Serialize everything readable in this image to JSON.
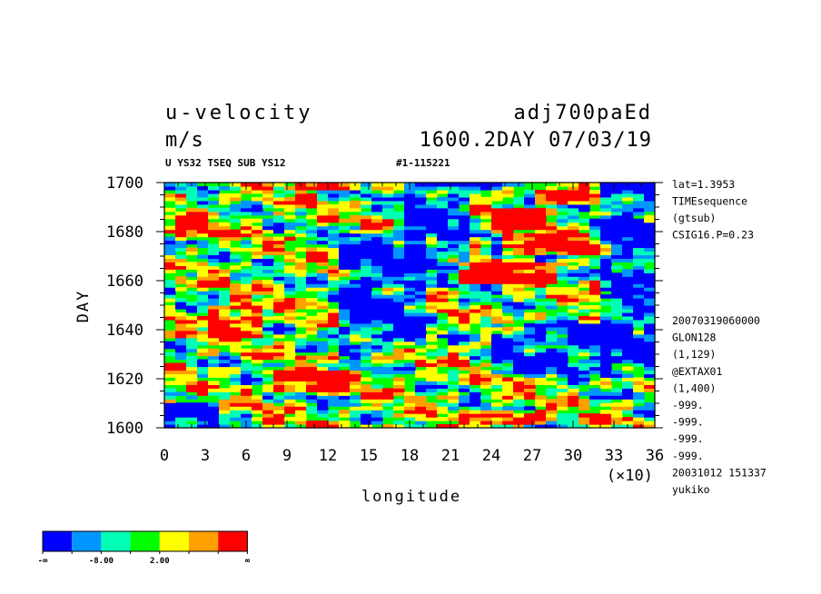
{
  "header": {
    "variable": "u-velocity",
    "experiment": "adj700paEd",
    "units": "m/s",
    "time_label": "1600.2DAY 07/03/19",
    "subtitle": "U YS32 TSEQ SUB YS12",
    "run_id": "#1-115221"
  },
  "side_info": {
    "top": [
      "lat=1.3953",
      "TIMEsequence",
      "(gtsub)",
      "CSIG16.P=0.23"
    ],
    "bottom": [
      "20070319060000",
      "GLON128",
      "(1,129)",
      "@EXTAX01",
      "(1,400)",
      "-999.",
      "-999.",
      "-999.",
      "-999.",
      "20031012 151337",
      "yukiko"
    ]
  },
  "chart_data": {
    "type": "heatmap",
    "xlabel": "longitude",
    "ylabel": "DAY",
    "x_multiplier": "(×10)",
    "xlim": [
      0,
      36
    ],
    "ylim": [
      1600,
      1700
    ],
    "x_ticks": [
      "0",
      "3",
      "6",
      "9",
      "12",
      "15",
      "18",
      "21",
      "24",
      "27",
      "30",
      "33",
      "36"
    ],
    "y_ticks": [
      "1600",
      "1620",
      "1640",
      "1660",
      "1680",
      "1700"
    ],
    "colors": [
      "#0000ff",
      "#0096ff",
      "#00ffb4",
      "#00ff00",
      "#ffff00",
      "#ffa000",
      "#ff0000"
    ],
    "colorbar_labels": [
      "-∞",
      "-8.00",
      "2.00",
      "∞"
    ],
    "red_regions": [
      {
        "x": [
          0.5,
          3.5
        ],
        "y": [
          1676,
          1685
        ]
      },
      {
        "x": [
          3,
          7.5
        ],
        "y": [
          1637,
          1650
        ]
      },
      {
        "x": [
          8,
          13.5
        ],
        "y": [
          1614,
          1623
        ]
      },
      {
        "x": [
          10,
          14
        ],
        "y": [
          1697,
          1700
        ]
      },
      {
        "x": [
          22,
          29
        ],
        "y": [
          1659,
          1667
        ]
      },
      {
        "x": [
          25,
          31
        ],
        "y": [
          1670,
          1679
        ]
      },
      {
        "x": [
          24,
          28.5
        ],
        "y": [
          1681,
          1689
        ]
      },
      {
        "x": [
          23,
          28
        ],
        "y": [
          1601,
          1607
        ]
      },
      {
        "x": [
          27,
          31
        ],
        "y": [
          1691,
          1697
        ]
      },
      {
        "x": [
          31,
          33
        ],
        "y": [
          1655,
          1660
        ]
      }
    ],
    "blue_regions": [
      {
        "x": [
          13,
          19
        ],
        "y": [
          1633,
          1680
        ]
      },
      {
        "x": [
          18,
          22
        ],
        "y": [
          1665,
          1700
        ]
      },
      {
        "x": [
          32,
          36
        ],
        "y": [
          1620,
          1700
        ]
      },
      {
        "x": [
          0,
          4
        ],
        "y": [
          1600,
          1610
        ]
      },
      {
        "x": [
          24,
          33
        ],
        "y": [
          1622,
          1642
        ]
      }
    ]
  }
}
